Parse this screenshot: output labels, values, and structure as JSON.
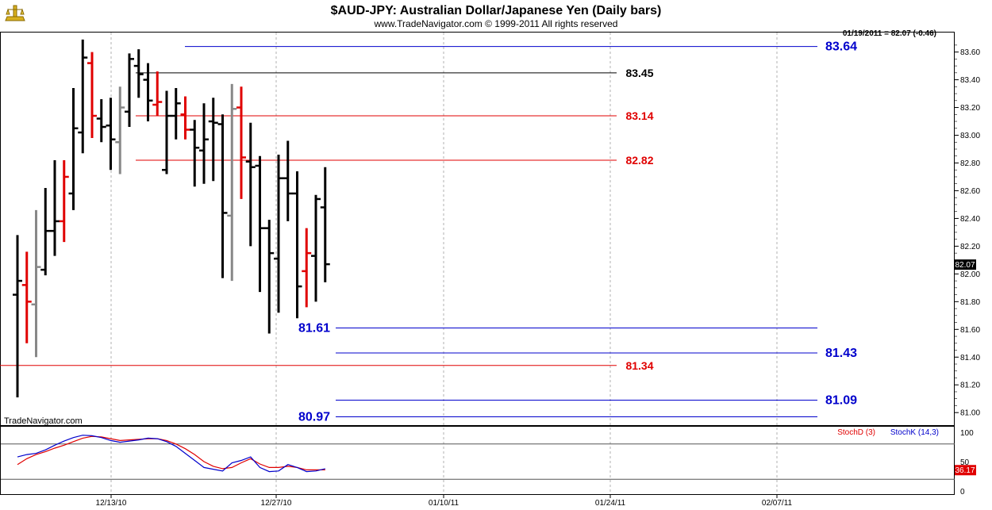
{
  "header": {
    "title": "$AUD-JPY:  Australian Dollar/Japanese Yen  (Daily bars)",
    "subtitle": "www.TradeNavigator.com © 1999-2011 All rights reserved",
    "last_quote": "01/19/2011 = 82.07 (-0.46)",
    "watermark": "TradeNavigator.com"
  },
  "colors": {
    "up": "#000000",
    "down": "#e00000",
    "neutral": "#888888",
    "blue": "#0000cc",
    "red": "#e00000",
    "black": "#000000",
    "stoch_d": "#e00000",
    "stoch_k": "#0000cc",
    "grid": "#b0b0b0"
  },
  "chart_data": [
    {
      "type": "ohlc",
      "title": "$AUD-JPY:  Australian Dollar/Japanese Yen  (Daily bars)",
      "ylim": [
        80.9,
        83.75
      ],
      "y_ticks": [
        "81.00",
        "81.20",
        "81.40",
        "81.60",
        "81.80",
        "82.00",
        "82.20",
        "82.40",
        "82.60",
        "82.80",
        "83.00",
        "83.20",
        "83.40",
        "83.60"
      ],
      "x_ticks": [
        "12/13/10",
        "12/27/10",
        "01/10/11",
        "01/24/11",
        "02/07/11"
      ],
      "last_price_label": "82.07",
      "bars": [
        {
          "o": 81.85,
          "h": 82.28,
          "l": 81.11,
          "c": 81.95,
          "col": "up"
        },
        {
          "o": 81.92,
          "h": 82.16,
          "l": 81.5,
          "c": 81.8,
          "col": "down"
        },
        {
          "o": 81.78,
          "h": 82.46,
          "l": 81.4,
          "c": 82.05,
          "col": "neutral"
        },
        {
          "o": 82.03,
          "h": 82.62,
          "l": 81.99,
          "c": 82.31,
          "col": "up"
        },
        {
          "o": 82.31,
          "h": 82.82,
          "l": 82.13,
          "c": 82.38,
          "col": "up"
        },
        {
          "o": 82.38,
          "h": 82.82,
          "l": 82.23,
          "c": 82.7,
          "col": "down"
        },
        {
          "o": 82.58,
          "h": 83.34,
          "l": 82.46,
          "c": 83.05,
          "col": "up"
        },
        {
          "o": 83.02,
          "h": 83.69,
          "l": 82.87,
          "c": 83.56,
          "col": "up"
        },
        {
          "o": 83.52,
          "h": 83.6,
          "l": 82.98,
          "c": 83.14,
          "col": "down"
        },
        {
          "o": 83.12,
          "h": 83.26,
          "l": 82.95,
          "c": 83.06,
          "col": "up"
        },
        {
          "o": 83.07,
          "h": 83.27,
          "l": 82.75,
          "c": 82.97,
          "col": "up"
        },
        {
          "o": 82.95,
          "h": 83.35,
          "l": 82.72,
          "c": 83.2,
          "col": "neutral"
        },
        {
          "o": 83.17,
          "h": 83.59,
          "l": 83.06,
          "c": 83.55,
          "col": "up"
        },
        {
          "o": 83.5,
          "h": 83.62,
          "l": 83.27,
          "c": 83.44,
          "col": "up"
        },
        {
          "o": 83.4,
          "h": 83.52,
          "l": 83.1,
          "c": 83.25,
          "col": "up"
        },
        {
          "o": 83.22,
          "h": 83.46,
          "l": 83.14,
          "c": 83.24,
          "col": "down"
        },
        {
          "o": 82.75,
          "h": 83.32,
          "l": 82.72,
          "c": 83.14,
          "col": "up"
        },
        {
          "o": 83.14,
          "h": 83.34,
          "l": 82.97,
          "c": 83.23,
          "col": "up"
        },
        {
          "o": 83.15,
          "h": 83.28,
          "l": 82.97,
          "c": 83.04,
          "col": "down"
        },
        {
          "o": 83.04,
          "h": 83.11,
          "l": 82.63,
          "c": 82.91,
          "col": "up"
        },
        {
          "o": 82.89,
          "h": 83.23,
          "l": 82.65,
          "c": 82.97,
          "col": "up"
        },
        {
          "o": 83.1,
          "h": 83.27,
          "l": 82.67,
          "c": 83.09,
          "col": "up"
        },
        {
          "o": 83.08,
          "h": 83.15,
          "l": 81.97,
          "c": 82.44,
          "col": "up"
        },
        {
          "o": 82.42,
          "h": 83.37,
          "l": 81.95,
          "c": 83.19,
          "col": "neutral"
        },
        {
          "o": 83.2,
          "h": 83.35,
          "l": 82.54,
          "c": 82.84,
          "col": "down"
        },
        {
          "o": 82.81,
          "h": 83.09,
          "l": 82.2,
          "c": 82.77,
          "col": "up"
        },
        {
          "o": 82.78,
          "h": 82.85,
          "l": 81.87,
          "c": 82.33,
          "col": "up"
        },
        {
          "o": 82.33,
          "h": 82.39,
          "l": 81.57,
          "c": 82.15,
          "col": "up"
        },
        {
          "o": 82.11,
          "h": 82.86,
          "l": 81.72,
          "c": 82.69,
          "col": "up"
        },
        {
          "o": 82.69,
          "h": 82.96,
          "l": 82.38,
          "c": 82.58,
          "col": "up"
        },
        {
          "o": 82.58,
          "h": 82.74,
          "l": 81.68,
          "c": 81.91,
          "col": "up"
        },
        {
          "o": 82.02,
          "h": 82.33,
          "l": 81.76,
          "c": 82.15,
          "col": "down"
        },
        {
          "o": 82.13,
          "h": 82.57,
          "l": 81.8,
          "c": 82.54,
          "col": "up"
        },
        {
          "o": 82.48,
          "h": 82.77,
          "l": 81.94,
          "c": 82.07,
          "col": "up"
        }
      ],
      "levels": [
        {
          "value": 83.64,
          "label": "83.64",
          "color": "blue",
          "side": "right"
        },
        {
          "value": 83.45,
          "label": "83.45",
          "color": "black",
          "side": "mid"
        },
        {
          "value": 83.14,
          "label": "83.14",
          "color": "red",
          "side": "mid"
        },
        {
          "value": 82.82,
          "label": "82.82",
          "color": "red",
          "side": "mid"
        },
        {
          "value": 81.61,
          "label": "81.61",
          "color": "blue",
          "side": "left"
        },
        {
          "value": 81.43,
          "label": "81.43",
          "color": "blue",
          "side": "right"
        },
        {
          "value": 81.34,
          "label": "81.34",
          "color": "red",
          "side": "mid"
        },
        {
          "value": 81.09,
          "label": "81.09",
          "color": "blue",
          "side": "right"
        },
        {
          "value": 80.97,
          "label": "80.97",
          "color": "blue",
          "side": "left"
        }
      ]
    },
    {
      "type": "line",
      "legend": [
        "StochD (3)",
        "StochK (14,3)"
      ],
      "ylim": [
        0,
        100
      ],
      "y_ticks": [
        "0",
        "50",
        "100"
      ],
      "reference_lines": [
        20,
        80
      ],
      "last_value_label": "36.17",
      "series": [
        {
          "name": "StochD (3)",
          "color": "stoch_d",
          "values": [
            45,
            55,
            62,
            67,
            73,
            78,
            84,
            90,
            93,
            92,
            89,
            86,
            87,
            88,
            89,
            89,
            86,
            80,
            72,
            62,
            50,
            42,
            38,
            40,
            48,
            55,
            46,
            40,
            40,
            42,
            40,
            36,
            36,
            36
          ]
        },
        {
          "name": "StochK (14,3)",
          "color": "stoch_k",
          "values": [
            58,
            62,
            64,
            70,
            78,
            85,
            91,
            95,
            94,
            91,
            86,
            83,
            85,
            87,
            90,
            89,
            84,
            76,
            64,
            52,
            40,
            37,
            34,
            48,
            52,
            58,
            40,
            33,
            34,
            45,
            40,
            33,
            34,
            38
          ]
        }
      ]
    }
  ]
}
